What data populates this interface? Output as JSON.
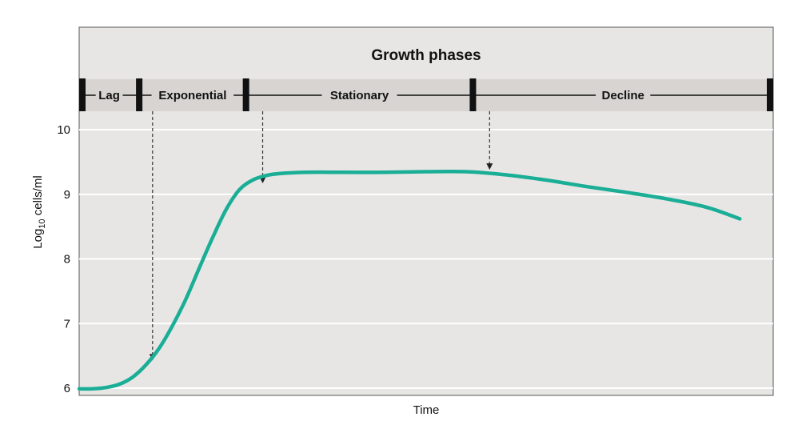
{
  "chart_data": {
    "type": "line",
    "title": "Growth phases",
    "xlabel": "Time",
    "ylabel_prefix": "Log",
    "ylabel_subscript": "10",
    "ylabel_suffix": " cells/ml",
    "ylim": [
      5.95,
      10.0
    ],
    "y_ticks": [
      "6",
      "7",
      "8",
      "9",
      "10"
    ],
    "grid": true,
    "x_tick_labels_shown": false,
    "phases": [
      {
        "name": "Lag",
        "start": 0,
        "end": 9
      },
      {
        "name": "Exponential",
        "start": 9,
        "end": 25
      },
      {
        "name": "Stationary",
        "start": 25,
        "end": 59
      },
      {
        "name": "Decline",
        "start": 59,
        "end": 104
      }
    ],
    "series": [
      {
        "color": "#1aae96",
        "x": [
          0,
          2,
          4,
          6,
          8,
          10,
          12,
          14,
          16,
          18,
          20,
          22,
          24,
          26,
          28,
          30,
          34,
          40,
          46,
          52,
          58,
          64,
          70,
          76,
          82,
          88,
          94,
          99
        ],
        "y": [
          5.99,
          5.99,
          6.01,
          6.06,
          6.17,
          6.36,
          6.62,
          6.97,
          7.38,
          7.86,
          8.33,
          8.76,
          9.07,
          9.22,
          9.29,
          9.32,
          9.34,
          9.34,
          9.34,
          9.35,
          9.35,
          9.3,
          9.22,
          9.12,
          9.03,
          8.93,
          8.8,
          8.62
        ]
      }
    ],
    "annotations": [
      {
        "type": "dashed-arrow",
        "x": 11,
        "target_y": 6.38
      },
      {
        "type": "dashed-arrow",
        "x": 27.5,
        "target_y": 9.12
      },
      {
        "type": "dashed-arrow",
        "x": 61.5,
        "target_y": 9.33
      }
    ]
  }
}
